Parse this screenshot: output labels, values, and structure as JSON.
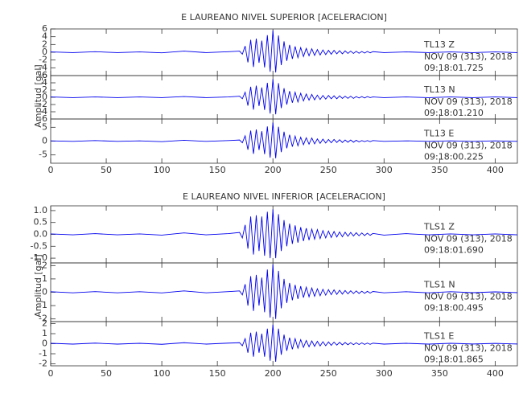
{
  "chart_data": [
    {
      "type": "line",
      "title": "E LAUREANO NIVEL SUPERIOR [ACELERACION]",
      "ylabel": "Amplitud [gal]",
      "color": "#0000ee",
      "x": [
        0,
        20,
        40,
        60,
        80,
        100,
        120,
        140,
        160,
        170,
        172.5,
        175,
        177.5,
        180,
        182.5,
        185,
        187.5,
        190,
        192.5,
        195,
        197.5,
        200,
        202.5,
        205,
        207.5,
        210,
        212.5,
        215,
        217.5,
        220,
        222.5,
        225,
        227.5,
        230,
        232.5,
        235,
        237.5,
        240,
        242.5,
        245,
        247.5,
        250,
        252.5,
        255,
        257.5,
        260,
        262.5,
        265,
        267.5,
        270,
        272.5,
        275,
        277.5,
        280,
        282.5,
        285,
        287.5,
        290,
        300,
        320,
        340,
        360,
        380,
        400,
        420
      ],
      "xlim": [
        0,
        420
      ],
      "xticks": [
        0,
        50,
        100,
        150,
        200,
        250,
        300,
        350,
        400
      ],
      "panels": [
        {
          "label": "TL13   Z",
          "date": "NOV 09 (313), 2018",
          "time": "09:18:01.725",
          "ylim": [
            -6,
            6
          ],
          "yticks": [
            -6,
            -4,
            -2,
            0,
            2,
            4,
            6
          ],
          "values": [
            0.1,
            -0.1,
            0.15,
            -0.1,
            0.1,
            -0.15,
            0.3,
            -0.1,
            0.15,
            0.3,
            -0.5,
            1.6,
            -2.6,
            3.2,
            -3.8,
            3.5,
            -2.7,
            3.0,
            -3.9,
            4.4,
            -5.0,
            5.6,
            -5.2,
            4.3,
            -3.3,
            2.8,
            -2.2,
            1.9,
            -1.7,
            1.5,
            -1.4,
            1.2,
            -1.1,
            1.0,
            -0.9,
            0.9,
            -0.8,
            0.7,
            -0.7,
            0.6,
            -0.6,
            0.5,
            -0.5,
            0.5,
            -0.4,
            0.4,
            -0.4,
            0.35,
            -0.3,
            0.3,
            -0.3,
            0.25,
            -0.25,
            0.2,
            -0.2,
            0.2,
            -0.15,
            0.15,
            -0.1,
            0.1,
            -0.1,
            0.1,
            -0.1,
            0.1,
            -0.1
          ]
        },
        {
          "label": "TL13   N",
          "date": "NOV 09 (313), 2018",
          "time": "09:18:01.210",
          "ylim": [
            -6,
            6
          ],
          "yticks": [
            -6,
            -4,
            -2,
            0,
            2,
            4,
            6
          ],
          "values": [
            0.1,
            -0.1,
            0.1,
            -0.1,
            0.1,
            -0.1,
            0.2,
            -0.1,
            0.1,
            0.3,
            -0.4,
            1.4,
            -2.3,
            2.9,
            -3.4,
            3.2,
            -2.4,
            2.7,
            -3.5,
            4.0,
            -4.5,
            5.0,
            -4.7,
            3.9,
            -3.0,
            2.5,
            -2.0,
            1.7,
            -1.5,
            1.4,
            -1.3,
            1.1,
            -1.0,
            0.9,
            -0.8,
            0.8,
            -0.7,
            0.6,
            -0.6,
            0.5,
            -0.5,
            0.5,
            -0.4,
            0.4,
            -0.4,
            0.4,
            -0.3,
            0.3,
            -0.3,
            0.3,
            -0.3,
            0.2,
            -0.2,
            0.2,
            -0.2,
            0.2,
            -0.1,
            0.1,
            -0.1,
            0.1,
            -0.1,
            0.1,
            -0.1,
            0.1,
            -0.1
          ]
        },
        {
          "label": "TL13   E",
          "date": "NOV 09 (313), 2018",
          "time": "09:18:00.225",
          "ylim": [
            -8,
            8
          ],
          "yticks": [
            -5,
            0,
            5
          ],
          "values": [
            0.1,
            -0.1,
            0.2,
            -0.1,
            0.1,
            -0.2,
            0.3,
            -0.1,
            0.2,
            0.4,
            -0.6,
            1.9,
            -3.1,
            3.8,
            -4.6,
            4.2,
            -3.2,
            3.6,
            -4.7,
            5.3,
            -6.0,
            6.7,
            -6.2,
            5.2,
            -4.0,
            3.4,
            -2.6,
            2.3,
            -2.0,
            1.8,
            -1.7,
            1.4,
            -1.3,
            1.2,
            -1.1,
            1.1,
            -1.0,
            0.8,
            -0.8,
            0.7,
            -0.7,
            0.6,
            -0.6,
            0.6,
            -0.5,
            0.5,
            -0.5,
            0.4,
            -0.4,
            0.4,
            -0.4,
            0.3,
            -0.3,
            0.2,
            -0.2,
            0.2,
            -0.2,
            0.2,
            -0.1,
            0.1,
            -0.1,
            0.1,
            -0.1,
            0.1,
            -0.1
          ]
        }
      ]
    },
    {
      "type": "line",
      "title": "E LAUREANO NIVEL INFERIOR [ACELERACION]",
      "ylabel": "Amplitud [gal]",
      "color": "#0000ee",
      "x": [
        0,
        20,
        40,
        60,
        80,
        100,
        120,
        140,
        160,
        170,
        172.5,
        175,
        177.5,
        180,
        182.5,
        185,
        187.5,
        190,
        192.5,
        195,
        197.5,
        200,
        202.5,
        205,
        207.5,
        210,
        212.5,
        215,
        217.5,
        220,
        222.5,
        225,
        227.5,
        230,
        232.5,
        235,
        237.5,
        240,
        242.5,
        245,
        247.5,
        250,
        252.5,
        255,
        257.5,
        260,
        262.5,
        265,
        267.5,
        270,
        272.5,
        275,
        277.5,
        280,
        282.5,
        285,
        287.5,
        290,
        300,
        320,
        340,
        360,
        380,
        400,
        420
      ],
      "xlim": [
        0,
        420
      ],
      "xticks": [
        0,
        50,
        100,
        150,
        200,
        250,
        300,
        350,
        400
      ],
      "panels": [
        {
          "label": "TLS1   Z",
          "date": "NOV 09 (313), 2018",
          "time": "09:18:01.690",
          "ylim": [
            -1.2,
            1.2
          ],
          "yticks": [
            {
              "value": -1,
              "label": "-1.0"
            },
            -0.5,
            {
              "value": 0,
              "label": "0.0"
            },
            0.5,
            {
              "value": 1,
              "label": "1.0"
            }
          ],
          "values": [
            0.02,
            -0.02,
            0.03,
            -0.02,
            0.02,
            -0.03,
            0.06,
            -0.02,
            0.03,
            0.08,
            -0.15,
            0.4,
            -0.6,
            0.75,
            -0.85,
            0.8,
            -0.7,
            0.75,
            -0.9,
            0.95,
            -1.0,
            1.05,
            -1.0,
            0.85,
            -0.7,
            0.6,
            -0.5,
            0.45,
            -0.4,
            0.38,
            -0.35,
            0.3,
            -0.28,
            0.26,
            -0.24,
            0.22,
            -0.2,
            0.2,
            -0.18,
            0.16,
            -0.15,
            0.14,
            -0.13,
            0.12,
            -0.11,
            0.1,
            -0.1,
            0.09,
            -0.08,
            0.08,
            -0.07,
            0.07,
            -0.06,
            0.06,
            -0.05,
            0.05,
            -0.04,
            0.04,
            -0.03,
            0.03,
            -0.02,
            0.02,
            -0.02,
            0.02,
            -0.02
          ]
        },
        {
          "label": "TLS1   N",
          "date": "NOV 09 (313), 2018",
          "time": "09:18:00.495",
          "ylim": [
            -2.2,
            2.2
          ],
          "yticks": [
            -2,
            -1,
            0,
            1,
            2
          ],
          "values": [
            0.04,
            -0.04,
            0.05,
            -0.04,
            0.04,
            -0.05,
            0.1,
            -0.04,
            0.05,
            0.1,
            -0.2,
            0.6,
            -1.0,
            1.2,
            -1.4,
            1.3,
            -1.0,
            1.1,
            -1.5,
            1.7,
            -1.9,
            2.1,
            -2.0,
            1.6,
            -1.2,
            1.0,
            -0.8,
            0.7,
            -0.6,
            0.55,
            -0.5,
            0.45,
            -0.4,
            0.38,
            -0.34,
            0.32,
            -0.3,
            0.26,
            -0.26,
            0.22,
            -0.22,
            0.2,
            -0.18,
            0.18,
            -0.16,
            0.15,
            -0.14,
            0.13,
            -0.12,
            0.11,
            -0.1,
            0.1,
            -0.09,
            0.08,
            -0.08,
            0.07,
            -0.06,
            0.06,
            -0.04,
            0.04,
            -0.04,
            0.04,
            -0.03,
            0.03,
            -0.03
          ]
        },
        {
          "label": "TLS1   E",
          "date": "NOV 09 (313), 2018",
          "time": "09:18:01.865",
          "ylim": [
            -2.2,
            2.2
          ],
          "yticks": [
            -2,
            -1,
            0,
            1,
            2
          ],
          "values": [
            0.04,
            -0.04,
            0.06,
            -0.04,
            0.04,
            -0.06,
            0.1,
            -0.04,
            0.06,
            0.1,
            -0.2,
            0.5,
            -0.9,
            1.1,
            -1.3,
            1.2,
            -0.9,
            1.0,
            -1.3,
            1.5,
            -1.7,
            1.9,
            -1.8,
            1.5,
            -1.1,
            0.9,
            -0.7,
            0.6,
            -0.55,
            0.5,
            -0.45,
            0.4,
            -0.36,
            0.32,
            -0.3,
            0.28,
            -0.26,
            0.24,
            -0.22,
            0.2,
            -0.2,
            0.18,
            -0.16,
            0.16,
            -0.14,
            0.14,
            -0.12,
            0.12,
            -0.1,
            0.1,
            -0.1,
            0.09,
            -0.08,
            0.08,
            -0.07,
            0.06,
            -0.06,
            0.05,
            -0.04,
            0.04,
            -0.04,
            0.04,
            -0.03,
            0.03,
            -0.03
          ]
        }
      ]
    }
  ]
}
